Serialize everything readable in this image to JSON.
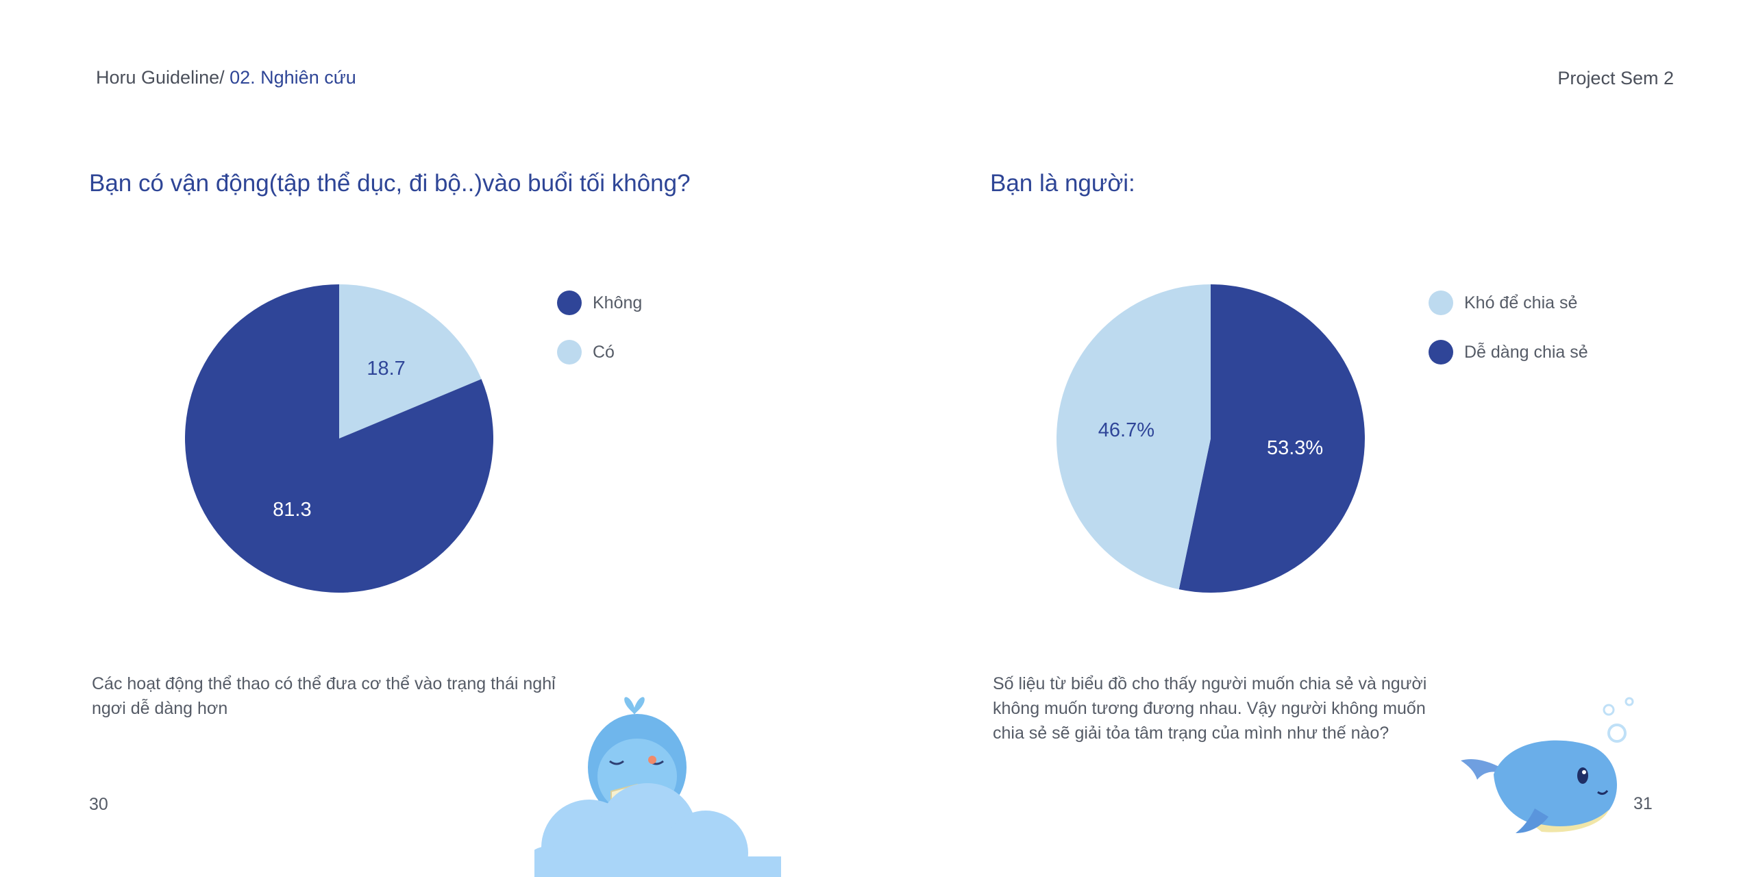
{
  "header": {
    "breadcrumb_prefix": "Horu Guideline/",
    "breadcrumb_section": " 02. Nghiên cứu",
    "project": "Project Sem 2"
  },
  "left": {
    "question": "Bạn có vận động(tập thể dục, đi bộ..)vào buổi tối không?",
    "caption": "Các hoạt động thể thao có thể đưa cơ thể vào trạng thái nghỉ ngơi dễ dàng hơn",
    "page_number": "30",
    "legend": [
      {
        "label": "Không",
        "color": "#2f4598"
      },
      {
        "label": "Có",
        "color": "#bddaef"
      }
    ]
  },
  "right": {
    "question": "Bạn là người:",
    "caption": "Số liệu từ biểu đồ cho thấy người muốn chia sẻ và người không muốn tương đương nhau. Vậy người không muốn chia sẻ sẽ giải tỏa tâm trạng của mình như thế nào?",
    "page_number": "31",
    "legend": [
      {
        "label": "Khó để chia sẻ",
        "color": "#bddaef"
      },
      {
        "label": "Dễ dàng chia sẻ",
        "color": "#2f4598"
      }
    ]
  },
  "chart_data": [
    {
      "type": "pie",
      "title": "Bạn có vận động(tập thể dục, đi bộ..)vào buổi tối không?",
      "categories": [
        "Không",
        "Có"
      ],
      "values": [
        81.3,
        18.7
      ],
      "data_labels": [
        "81.3",
        "18.7"
      ],
      "colors": [
        "#2f4598",
        "#bddaef"
      ],
      "legend_position": "right"
    },
    {
      "type": "pie",
      "title": "Bạn là người:",
      "categories": [
        "Khó để chia sẻ",
        "Dễ dàng chia sẻ"
      ],
      "values": [
        46.7,
        53.3
      ],
      "data_labels": [
        "46.7%",
        "53.3%"
      ],
      "colors": [
        "#bddaef",
        "#2f4598"
      ],
      "legend_position": "right"
    }
  ],
  "illustrations": {
    "left": "whale-on-cloud-illustration",
    "right": "swimming-whale-illustration"
  }
}
